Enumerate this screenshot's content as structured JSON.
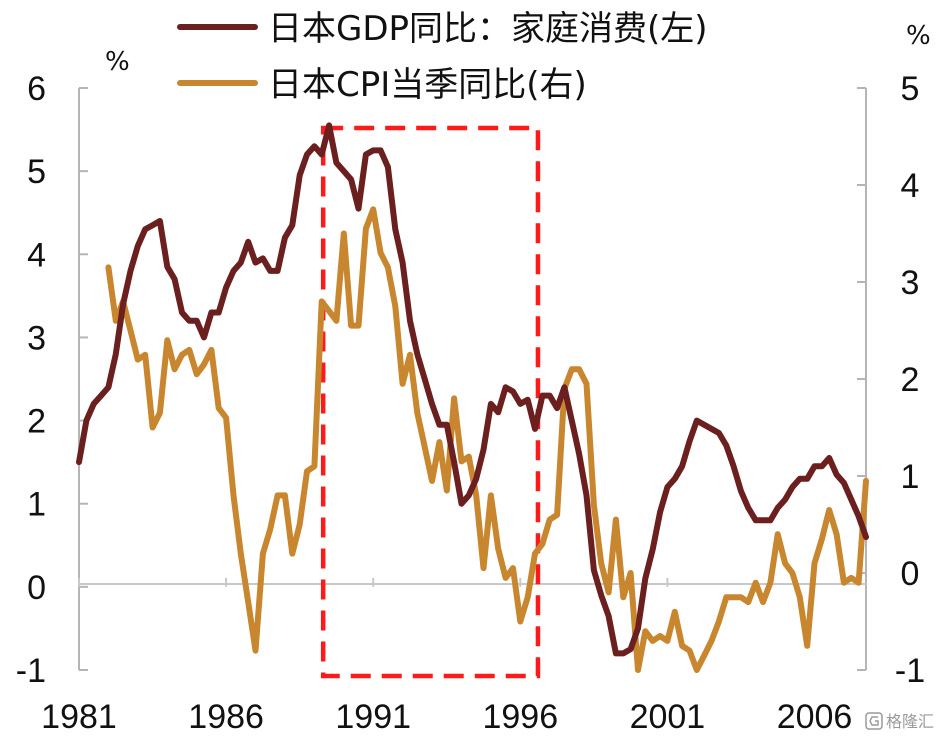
{
  "chart_data": {
    "type": "line",
    "x_tick_labels": [
      "1981",
      "1986",
      "1991",
      "1996",
      "2001",
      "2006"
    ],
    "x_ticks": [
      1981,
      1986,
      1991,
      1996,
      2001,
      2006
    ],
    "xlim": [
      1981,
      2007.75
    ],
    "y_left_ticks": [
      "6",
      "5",
      "4",
      "3",
      "2",
      "1",
      "0",
      "-1"
    ],
    "y_left_lim": [
      -1,
      6
    ],
    "y_left_unit": "%",
    "y_right_ticks": [
      "5",
      "4",
      "3",
      "2",
      "1",
      "0",
      "-1"
    ],
    "y_right_lim": [
      -1,
      5
    ],
    "y_right_unit": "%",
    "legend_position": "top",
    "highlight_box": {
      "x": [
        1989.3,
        1996.6
      ],
      "style": "red dashed rectangle"
    },
    "series": [
      {
        "name": "日本GDP同比：家庭消费(左)",
        "axis": "left",
        "color": "#6b1f1f",
        "points": [
          [
            1981.0,
            1.5
          ],
          [
            1981.25,
            2.0
          ],
          [
            1981.5,
            2.2
          ],
          [
            1981.75,
            2.3
          ],
          [
            1982.0,
            2.4
          ],
          [
            1982.25,
            2.8
          ],
          [
            1982.5,
            3.4
          ],
          [
            1982.75,
            3.8
          ],
          [
            1983.0,
            4.1
          ],
          [
            1983.25,
            4.3
          ],
          [
            1983.5,
            4.35
          ],
          [
            1983.75,
            4.4
          ],
          [
            1984.0,
            3.85
          ],
          [
            1984.25,
            3.7
          ],
          [
            1984.5,
            3.3
          ],
          [
            1984.75,
            3.2
          ],
          [
            1985.0,
            3.2
          ],
          [
            1985.25,
            3.0
          ],
          [
            1985.5,
            3.3
          ],
          [
            1985.75,
            3.3
          ],
          [
            1986.0,
            3.6
          ],
          [
            1986.25,
            3.8
          ],
          [
            1986.5,
            3.9
          ],
          [
            1986.75,
            4.15
          ],
          [
            1987.0,
            3.9
          ],
          [
            1987.25,
            3.95
          ],
          [
            1987.5,
            3.8
          ],
          [
            1987.75,
            3.8
          ],
          [
            1988.0,
            4.2
          ],
          [
            1988.25,
            4.35
          ],
          [
            1988.5,
            4.95
          ],
          [
            1988.75,
            5.2
          ],
          [
            1989.0,
            5.3
          ],
          [
            1989.25,
            5.2
          ],
          [
            1989.5,
            5.55
          ],
          [
            1989.75,
            5.1
          ],
          [
            1990.0,
            5.0
          ],
          [
            1990.25,
            4.9
          ],
          [
            1990.5,
            4.55
          ],
          [
            1990.75,
            5.2
          ],
          [
            1991.0,
            5.25
          ],
          [
            1991.25,
            5.25
          ],
          [
            1991.5,
            5.05
          ],
          [
            1991.75,
            4.3
          ],
          [
            1992.0,
            3.9
          ],
          [
            1992.25,
            3.2
          ],
          [
            1992.5,
            2.8
          ],
          [
            1992.75,
            2.5
          ],
          [
            1993.0,
            2.2
          ],
          [
            1993.25,
            1.95
          ],
          [
            1993.5,
            1.95
          ],
          [
            1993.75,
            1.5
          ],
          [
            1994.0,
            1.0
          ],
          [
            1994.25,
            1.1
          ],
          [
            1994.5,
            1.3
          ],
          [
            1994.75,
            1.65
          ],
          [
            1995.0,
            2.2
          ],
          [
            1995.25,
            2.1
          ],
          [
            1995.5,
            2.4
          ],
          [
            1995.75,
            2.35
          ],
          [
            1996.0,
            2.2
          ],
          [
            1996.25,
            2.25
          ],
          [
            1996.5,
            1.9
          ],
          [
            1996.75,
            2.3
          ],
          [
            1997.0,
            2.3
          ],
          [
            1997.25,
            2.15
          ],
          [
            1997.5,
            2.4
          ],
          [
            1997.75,
            2.0
          ],
          [
            1998.0,
            1.6
          ],
          [
            1998.25,
            1.1
          ],
          [
            1998.5,
            0.2
          ],
          [
            1998.75,
            -0.1
          ],
          [
            1999.0,
            -0.35
          ],
          [
            1999.25,
            -0.8
          ],
          [
            1999.5,
            -0.8
          ],
          [
            1999.75,
            -0.75
          ],
          [
            2000.0,
            -0.5
          ],
          [
            2000.25,
            0.1
          ],
          [
            2000.5,
            0.45
          ],
          [
            2000.75,
            0.9
          ],
          [
            2001.0,
            1.2
          ],
          [
            2001.25,
            1.3
          ],
          [
            2001.5,
            1.45
          ],
          [
            2001.75,
            1.75
          ],
          [
            2002.0,
            2.0
          ],
          [
            2002.25,
            1.95
          ],
          [
            2002.5,
            1.9
          ],
          [
            2002.75,
            1.85
          ],
          [
            2003.0,
            1.7
          ],
          [
            2003.25,
            1.45
          ],
          [
            2003.5,
            1.15
          ],
          [
            2003.75,
            0.95
          ],
          [
            2004.0,
            0.8
          ],
          [
            2004.25,
            0.8
          ],
          [
            2004.5,
            0.8
          ],
          [
            2004.75,
            0.95
          ],
          [
            2005.0,
            1.05
          ],
          [
            2005.25,
            1.2
          ],
          [
            2005.5,
            1.3
          ],
          [
            2005.75,
            1.3
          ],
          [
            2006.0,
            1.45
          ],
          [
            2006.25,
            1.45
          ],
          [
            2006.5,
            1.55
          ],
          [
            2006.75,
            1.35
          ],
          [
            2007.0,
            1.25
          ],
          [
            2007.25,
            1.05
          ],
          [
            2007.5,
            0.85
          ],
          [
            2007.75,
            0.6
          ]
        ]
      },
      {
        "name": "日本CPI当季同比(右)",
        "axis": "right",
        "color": "#c8862e",
        "points": [
          [
            1982.0,
            3.15
          ],
          [
            1982.25,
            2.6
          ],
          [
            1982.5,
            2.8
          ],
          [
            1982.75,
            2.5
          ],
          [
            1983.0,
            2.2
          ],
          [
            1983.25,
            2.25
          ],
          [
            1983.5,
            1.5
          ],
          [
            1983.75,
            1.65
          ],
          [
            1984.0,
            2.4
          ],
          [
            1984.25,
            2.1
          ],
          [
            1984.5,
            2.25
          ],
          [
            1984.75,
            2.3
          ],
          [
            1985.0,
            2.05
          ],
          [
            1985.25,
            2.15
          ],
          [
            1985.5,
            2.3
          ],
          [
            1985.75,
            1.7
          ],
          [
            1986.0,
            1.6
          ],
          [
            1986.25,
            0.8
          ],
          [
            1986.5,
            0.2
          ],
          [
            1986.75,
            -0.3
          ],
          [
            1987.0,
            -0.8
          ],
          [
            1987.25,
            0.2
          ],
          [
            1987.5,
            0.45
          ],
          [
            1987.75,
            0.8
          ],
          [
            1988.0,
            0.8
          ],
          [
            1988.25,
            0.2
          ],
          [
            1988.5,
            0.5
          ],
          [
            1988.75,
            1.05
          ],
          [
            1989.0,
            1.1
          ],
          [
            1989.25,
            2.8
          ],
          [
            1989.5,
            2.7
          ],
          [
            1989.75,
            2.6
          ],
          [
            1990.0,
            3.5
          ],
          [
            1990.25,
            2.55
          ],
          [
            1990.5,
            2.55
          ],
          [
            1990.75,
            3.55
          ],
          [
            1991.0,
            3.75
          ],
          [
            1991.25,
            3.3
          ],
          [
            1991.5,
            3.15
          ],
          [
            1991.75,
            2.75
          ],
          [
            1992.0,
            1.95
          ],
          [
            1992.25,
            2.25
          ],
          [
            1992.5,
            1.65
          ],
          [
            1992.75,
            1.3
          ],
          [
            1993.0,
            0.95
          ],
          [
            1993.25,
            1.35
          ],
          [
            1993.5,
            0.85
          ],
          [
            1993.75,
            1.8
          ],
          [
            1994.0,
            1.15
          ],
          [
            1994.25,
            1.2
          ],
          [
            1994.5,
            0.8
          ],
          [
            1994.75,
            0.05
          ],
          [
            1995.0,
            0.8
          ],
          [
            1995.25,
            0.25
          ],
          [
            1995.5,
            -0.05
          ],
          [
            1995.75,
            0.05
          ],
          [
            1996.0,
            -0.5
          ],
          [
            1996.25,
            -0.25
          ],
          [
            1996.5,
            0.2
          ],
          [
            1996.75,
            0.3
          ],
          [
            1997.0,
            0.55
          ],
          [
            1997.25,
            0.6
          ],
          [
            1997.5,
            1.9
          ],
          [
            1997.75,
            2.1
          ],
          [
            1998.0,
            2.1
          ],
          [
            1998.25,
            1.95
          ],
          [
            1998.5,
            0.7
          ],
          [
            1998.75,
            0.1
          ],
          [
            1999.0,
            -0.2
          ],
          [
            1999.25,
            0.55
          ],
          [
            1999.5,
            -0.25
          ],
          [
            1999.75,
            0.0
          ],
          [
            2000.0,
            -1.0
          ],
          [
            2000.25,
            -0.6
          ],
          [
            2000.5,
            -0.7
          ],
          [
            2000.75,
            -0.65
          ],
          [
            2001.0,
            -0.7
          ],
          [
            2001.25,
            -0.4
          ],
          [
            2001.5,
            -0.75
          ],
          [
            2001.75,
            -0.8
          ],
          [
            2002.0,
            -1.0
          ],
          [
            2002.25,
            -0.85
          ],
          [
            2002.5,
            -0.7
          ],
          [
            2002.75,
            -0.5
          ],
          [
            2003.0,
            -0.25
          ],
          [
            2003.25,
            -0.25
          ],
          [
            2003.5,
            -0.25
          ],
          [
            2003.75,
            -0.3
          ],
          [
            2004.0,
            -0.1
          ],
          [
            2004.25,
            -0.3
          ],
          [
            2004.5,
            -0.1
          ],
          [
            2004.75,
            0.4
          ],
          [
            2005.0,
            0.1
          ],
          [
            2005.25,
            0.0
          ],
          [
            2005.5,
            -0.25
          ],
          [
            2005.75,
            -0.75
          ],
          [
            2006.0,
            0.1
          ],
          [
            2006.25,
            0.35
          ],
          [
            2006.5,
            0.65
          ],
          [
            2006.75,
            0.4
          ],
          [
            2007.0,
            -0.1
          ],
          [
            2007.25,
            -0.05
          ],
          [
            2007.5,
            -0.1
          ],
          [
            2007.75,
            0.95
          ]
        ]
      }
    ]
  },
  "watermark": {
    "icon": "gelonghui-logo-icon",
    "text": "格隆汇"
  }
}
